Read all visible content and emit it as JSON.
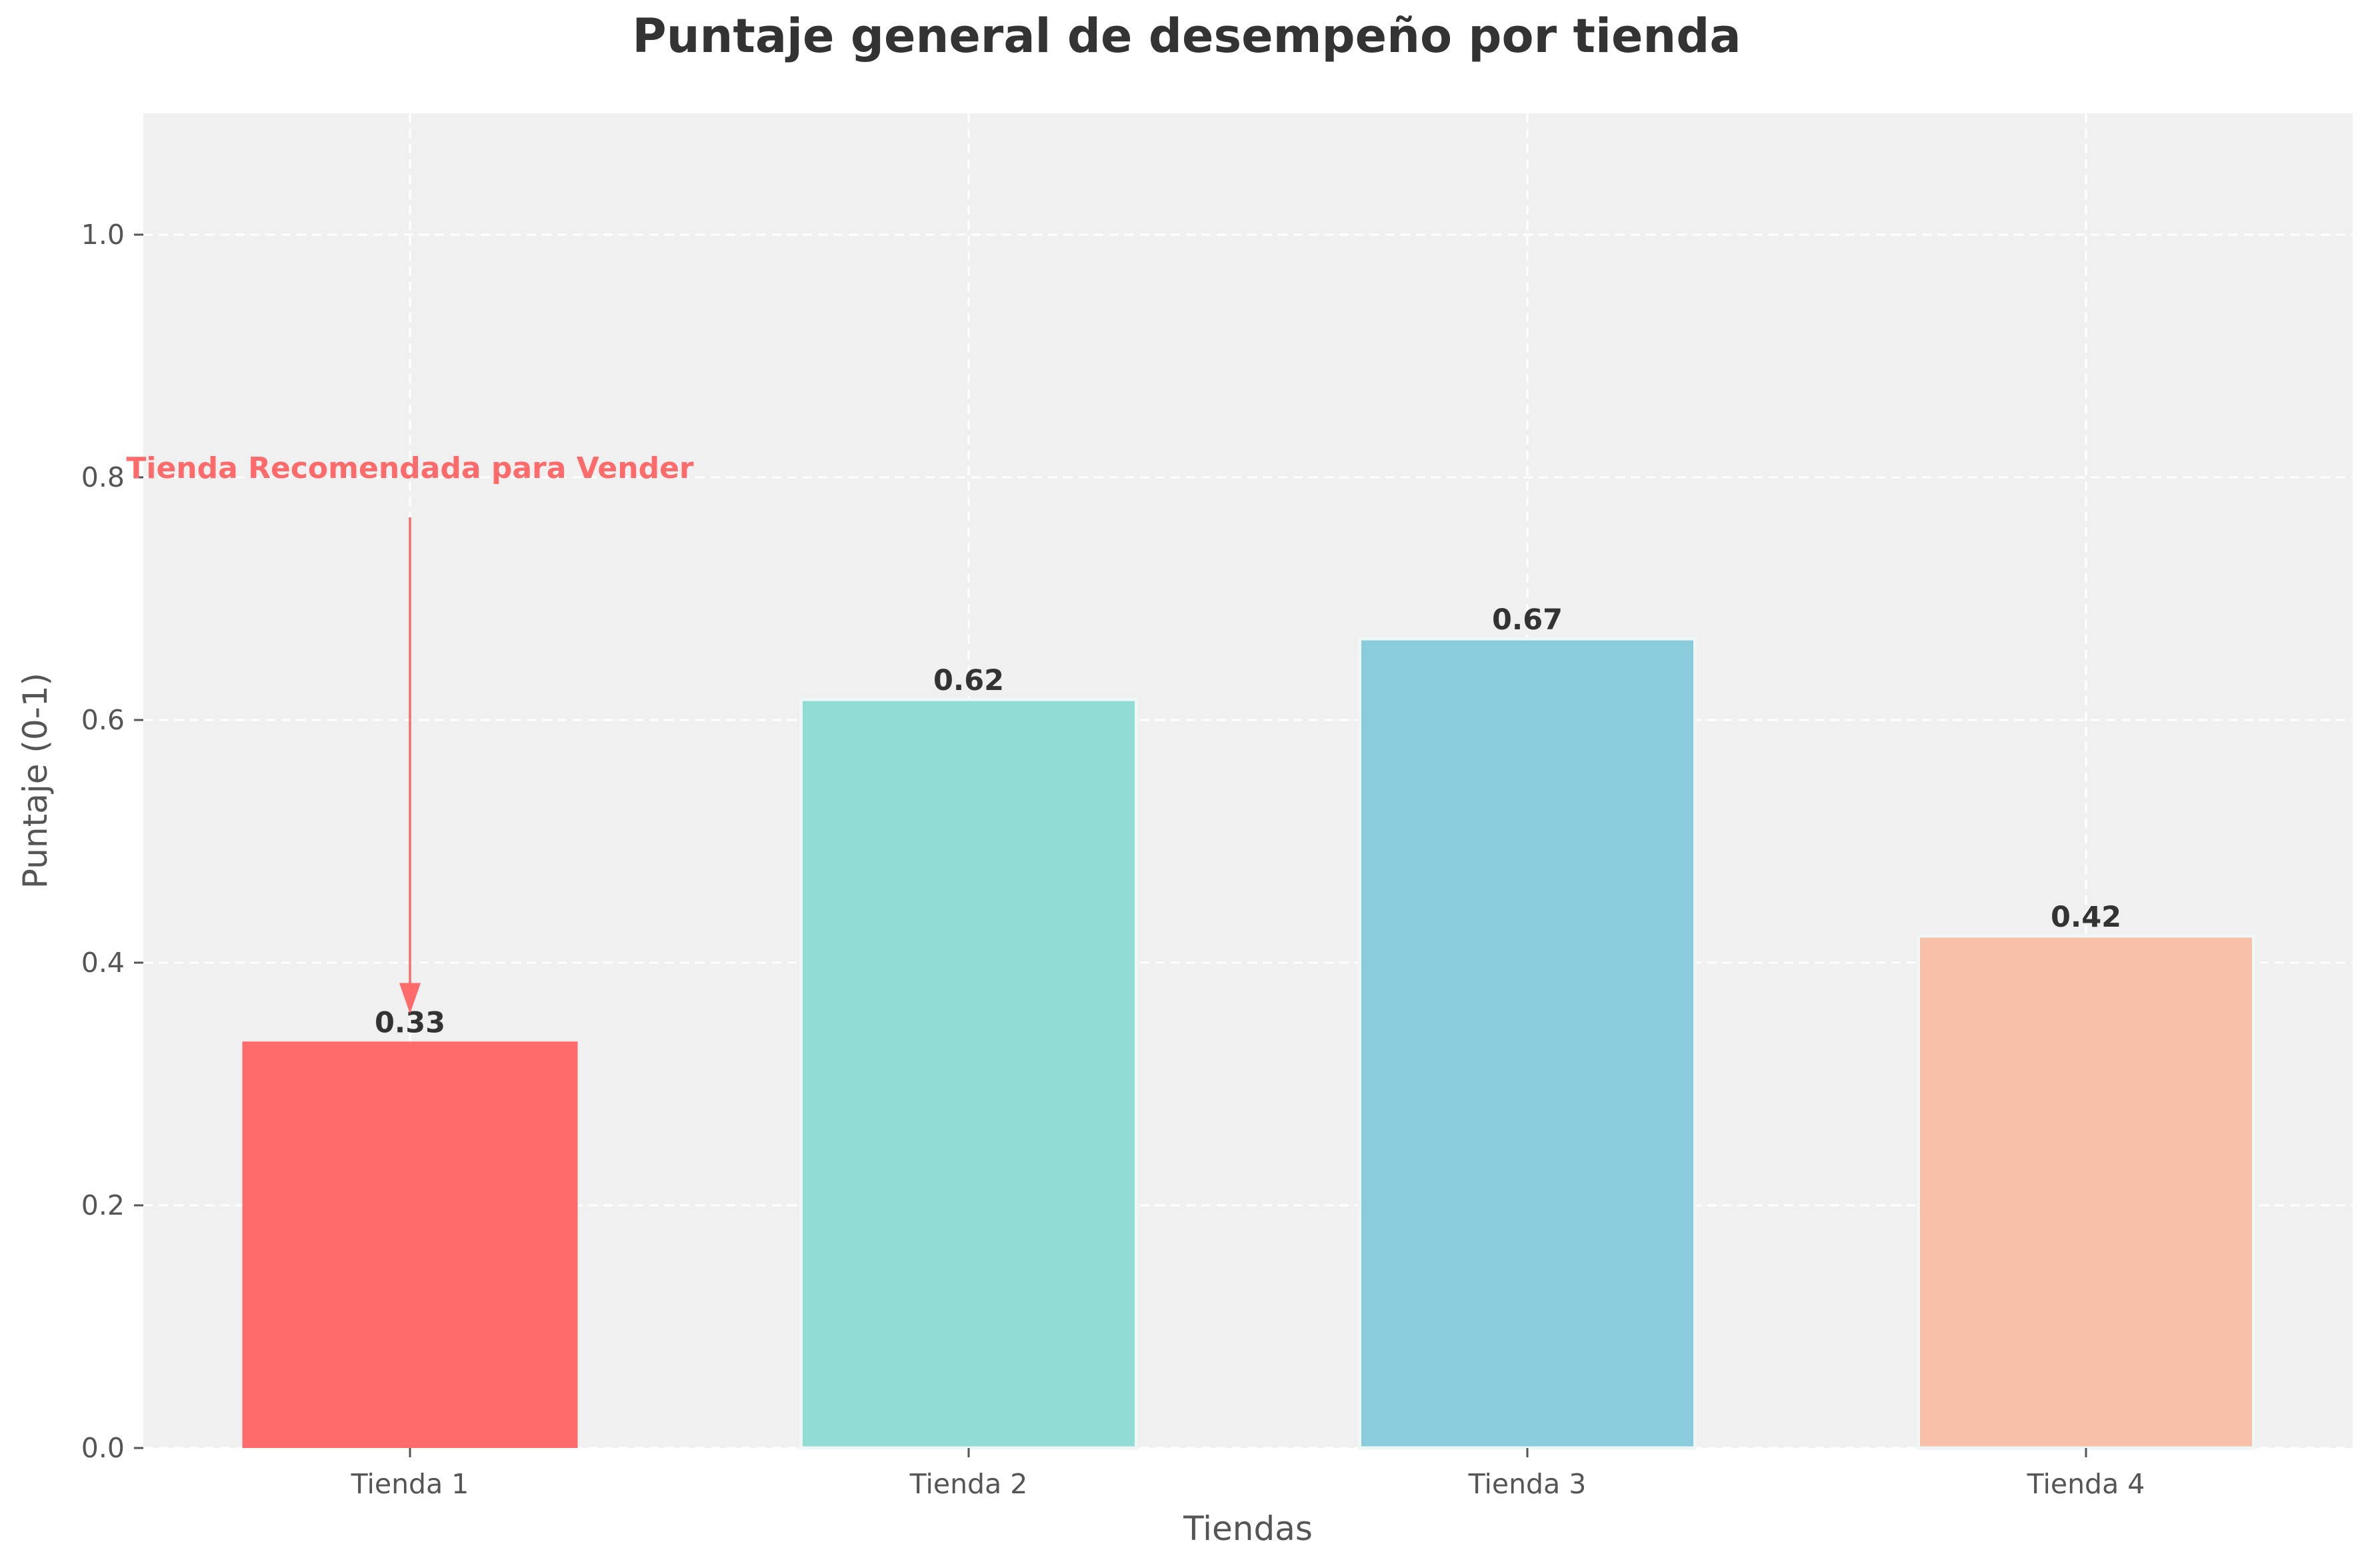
{
  "chart_data": {
    "type": "bar",
    "title": "Puntaje general de desempeño por tienda",
    "xlabel": "Tiendas",
    "ylabel": "Puntaje (0-1)",
    "categories": [
      "Tienda 1",
      "Tienda 2",
      "Tienda 3",
      "Tienda 4"
    ],
    "values": [
      0.335,
      0.617,
      0.667,
      0.422
    ],
    "data_labels": [
      "0.33",
      "0.62",
      "0.67",
      "0.42"
    ],
    "colors": [
      "#ff6b6b",
      "#92dcd6",
      "#8accdc",
      "#f8c0a8"
    ],
    "ylim": [
      0,
      1.1
    ],
    "yticks": [
      0.0,
      0.2,
      0.4,
      0.6,
      0.8,
      1.0
    ],
    "ytick_labels": [
      "0.0",
      "0.2",
      "0.4",
      "0.6",
      "0.8",
      "1.0"
    ],
    "grid": true,
    "plot_background": "#f0f0f0",
    "annotation": {
      "text": "Tienda Recomendada para Vender",
      "target_category": "Tienda 1",
      "color": "#ff6b6b"
    }
  }
}
